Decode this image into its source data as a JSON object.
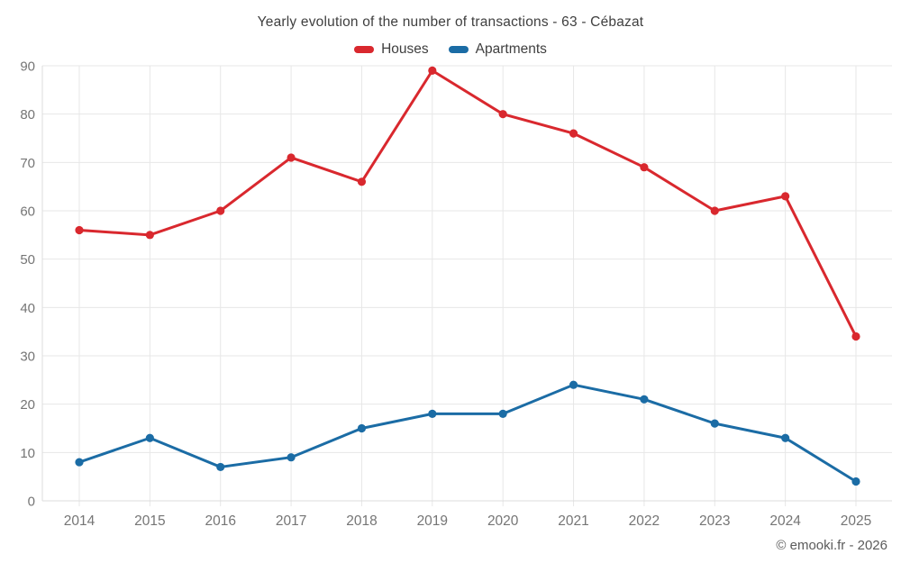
{
  "header": {
    "title": "Yearly evolution of the number of transactions - 63 - Cébazat"
  },
  "legend": {
    "items": [
      {
        "label": "Houses",
        "color": "#d9282e"
      },
      {
        "label": "Apartments",
        "color": "#1b6ca5"
      }
    ]
  },
  "footer": {
    "watermark": "© emooki.fr - 2026"
  },
  "chart_data": {
    "type": "line",
    "title": "Yearly evolution of the number of transactions - 63 - Cébazat",
    "x_labels": [
      "2014",
      "2015",
      "2016",
      "2017",
      "2018",
      "2019",
      "2020",
      "2021",
      "2022",
      "2023",
      "2024",
      "2025"
    ],
    "series": [
      {
        "name": "Houses",
        "color": "#d9282e",
        "values": [
          56,
          55,
          60,
          71,
          66,
          89,
          80,
          76,
          69,
          60,
          63,
          34
        ]
      },
      {
        "name": "Apartments",
        "color": "#1b6ca5",
        "values": [
          8,
          13,
          7,
          9,
          15,
          18,
          18,
          24,
          21,
          16,
          13,
          4
        ]
      }
    ],
    "ylim": [
      0,
      90
    ],
    "yticks": [
      0,
      10,
      20,
      30,
      40,
      50,
      60,
      70,
      80,
      90
    ],
    "grid": true,
    "legend_position": "top-center",
    "colors": {
      "grid": "#e7e7e7",
      "axis_line": "#dcdcdc",
      "axis_text": "#757575",
      "title_text": "#3f3f3f",
      "watermark_text": "#5b5b5b"
    }
  }
}
